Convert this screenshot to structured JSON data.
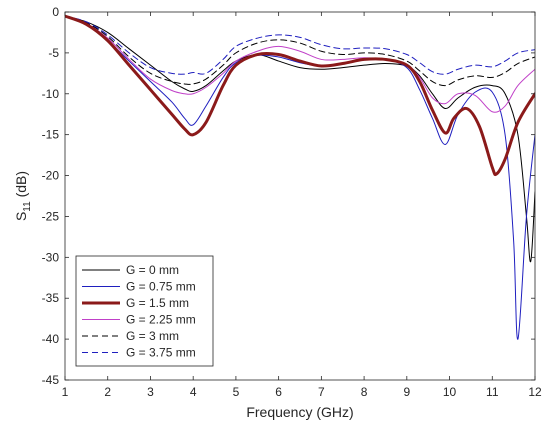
{
  "chart_data": {
    "type": "line",
    "xlabel": "Frequency (GHz)",
    "ylabel_main": "S",
    "ylabel_sub": "11",
    "ylabel_unit": " (dB)",
    "xlim": [
      1,
      12
    ],
    "ylim": [
      -45,
      0
    ],
    "xticks": [
      1,
      2,
      3,
      4,
      5,
      6,
      7,
      8,
      9,
      10,
      11,
      12
    ],
    "yticks": [
      0,
      -5,
      -10,
      -15,
      -20,
      -25,
      -30,
      -35,
      -40,
      -45
    ],
    "legend_position": "bottom-left",
    "series": [
      {
        "name": "G = 0 mm",
        "color": "#000000",
        "style": "solid",
        "width": 1,
        "x": [
          1,
          1.5,
          2,
          2.5,
          3,
          3.5,
          3.8,
          4,
          4.3,
          4.7,
          5,
          5.5,
          6,
          6.5,
          7,
          7.5,
          8,
          8.5,
          9,
          9.3,
          9.6,
          9.9,
          10.2,
          10.6,
          11,
          11.3,
          11.6,
          11.8,
          11.9,
          12
        ],
        "y": [
          -0.5,
          -1.2,
          -2.5,
          -4.5,
          -6.5,
          -8.5,
          -9.4,
          -9.7,
          -9,
          -7.2,
          -6,
          -5.2,
          -6,
          -6.8,
          -7,
          -6.8,
          -6.5,
          -6.3,
          -6.6,
          -7.8,
          -10,
          -11.8,
          -10.5,
          -9.2,
          -9,
          -10,
          -15,
          -25,
          -30.5,
          -22
        ]
      },
      {
        "name": "G = 0.75 mm",
        "color": "#1f1fbf",
        "style": "solid",
        "width": 1,
        "x": [
          1,
          1.5,
          2,
          2.5,
          3,
          3.5,
          3.8,
          4,
          4.3,
          4.7,
          5,
          5.5,
          6,
          6.5,
          7,
          7.5,
          8,
          8.5,
          9,
          9.3,
          9.6,
          9.9,
          10.2,
          10.6,
          11,
          11.3,
          11.5,
          11.6,
          11.8,
          12
        ],
        "y": [
          -0.5,
          -1.5,
          -3.5,
          -6,
          -8.5,
          -11,
          -13,
          -13.8,
          -11.5,
          -8,
          -6.2,
          -5.3,
          -5.5,
          -6.2,
          -6.6,
          -6.3,
          -5.8,
          -5.8,
          -6.8,
          -9.5,
          -13,
          -16.2,
          -12.5,
          -9.8,
          -9.8,
          -15,
          -28,
          -40,
          -25,
          -15
        ]
      },
      {
        "name": "G = 1.5 mm",
        "color": "#8b1a1a",
        "style": "solid",
        "width": 3,
        "x": [
          1,
          1.5,
          2,
          2.5,
          3,
          3.5,
          3.8,
          4,
          4.3,
          4.7,
          5,
          5.5,
          6,
          6.5,
          7,
          7.5,
          8,
          8.5,
          9,
          9.3,
          9.6,
          9.9,
          10.1,
          10.4,
          10.7,
          11,
          11.1,
          11.3,
          11.6,
          12
        ],
        "y": [
          -0.5,
          -1.5,
          -3.5,
          -6.5,
          -9.5,
          -12.5,
          -14.3,
          -15,
          -13.5,
          -9,
          -6.5,
          -5.2,
          -5.2,
          -6,
          -6.6,
          -6.3,
          -5.8,
          -5.8,
          -6.5,
          -8.5,
          -12,
          -14.8,
          -13,
          -11.8,
          -14,
          -19,
          -19.8,
          -18,
          -13.5,
          -10
        ]
      },
      {
        "name": "G = 2.25 mm",
        "color": "#c040c8",
        "style": "solid",
        "width": 1,
        "x": [
          1,
          1.5,
          2,
          2.5,
          3,
          3.5,
          3.8,
          4,
          4.3,
          4.7,
          5,
          5.5,
          6,
          6.5,
          7,
          7.5,
          8,
          8.5,
          9,
          9.3,
          9.6,
          9.9,
          10.2,
          10.6,
          11,
          11.3,
          11.6,
          12
        ],
        "y": [
          -0.5,
          -1.4,
          -3.2,
          -5.8,
          -8.2,
          -9.6,
          -10,
          -10,
          -9.2,
          -7.5,
          -6,
          -4.8,
          -4.2,
          -4.8,
          -5.8,
          -5.8,
          -5.6,
          -5.8,
          -6.5,
          -8,
          -10.5,
          -11.2,
          -10,
          -10.2,
          -12.2,
          -11.5,
          -9,
          -7
        ]
      },
      {
        "name": "G = 3 mm",
        "color": "#000000",
        "style": "dashed",
        "width": 1,
        "x": [
          1,
          1.5,
          2,
          2.5,
          3,
          3.5,
          3.8,
          4,
          4.3,
          4.7,
          5,
          5.5,
          6,
          6.5,
          7,
          7.5,
          8,
          8.5,
          9,
          9.3,
          9.6,
          9.9,
          10.2,
          10.6,
          11,
          11.3,
          11.6,
          12
        ],
        "y": [
          -0.5,
          -1.3,
          -3,
          -5.5,
          -7.5,
          -8.5,
          -8.8,
          -8.8,
          -8.2,
          -6.5,
          -5,
          -3.8,
          -3.4,
          -3.8,
          -4.8,
          -5.2,
          -5,
          -5.2,
          -6,
          -7.2,
          -8.5,
          -9,
          -8.3,
          -7.8,
          -8,
          -7.4,
          -6.3,
          -5.5
        ]
      },
      {
        "name": "G = 3.75 mm",
        "color": "#1f1fbf",
        "style": "dashed",
        "width": 1,
        "x": [
          1,
          1.5,
          2,
          2.5,
          3,
          3.5,
          3.8,
          4,
          4.3,
          4.7,
          5,
          5.5,
          6,
          6.5,
          7,
          7.5,
          8,
          8.5,
          9,
          9.3,
          9.6,
          9.9,
          10.2,
          10.6,
          11,
          11.3,
          11.6,
          12
        ],
        "y": [
          -0.5,
          -1.2,
          -2.8,
          -5,
          -6.8,
          -7.5,
          -7.6,
          -7.4,
          -7.5,
          -5.8,
          -4.2,
          -3.2,
          -2.8,
          -3.1,
          -4,
          -4.5,
          -4.4,
          -4.5,
          -5.2,
          -6.2,
          -7.3,
          -7.6,
          -7,
          -6.5,
          -6.7,
          -6,
          -5,
          -4.6
        ]
      }
    ]
  }
}
